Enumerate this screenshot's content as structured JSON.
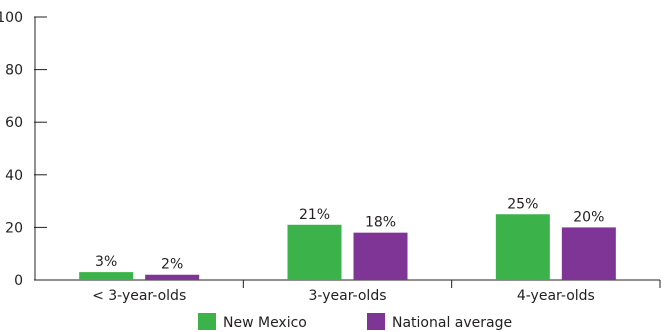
{
  "chart_data": {
    "type": "bar",
    "title": "",
    "xlabel": "",
    "ylabel": "",
    "categories": [
      "< 3-year-olds",
      "3-year-olds",
      "4-year-olds"
    ],
    "series": [
      {
        "name": "New Mexico",
        "color": "#3cb34a",
        "values": [
          3,
          21,
          25
        ],
        "labels": [
          "3%",
          "21%",
          "25%"
        ]
      },
      {
        "name": "National average",
        "color": "#7f3596",
        "values": [
          2,
          18,
          20
        ],
        "labels": [
          "2%",
          "18%",
          "20%"
        ]
      }
    ],
    "yticks": [
      0,
      20,
      40,
      60,
      80,
      100
    ],
    "ylim": [
      0,
      100
    ],
    "grid": false,
    "legend_position": "bottom-center"
  }
}
